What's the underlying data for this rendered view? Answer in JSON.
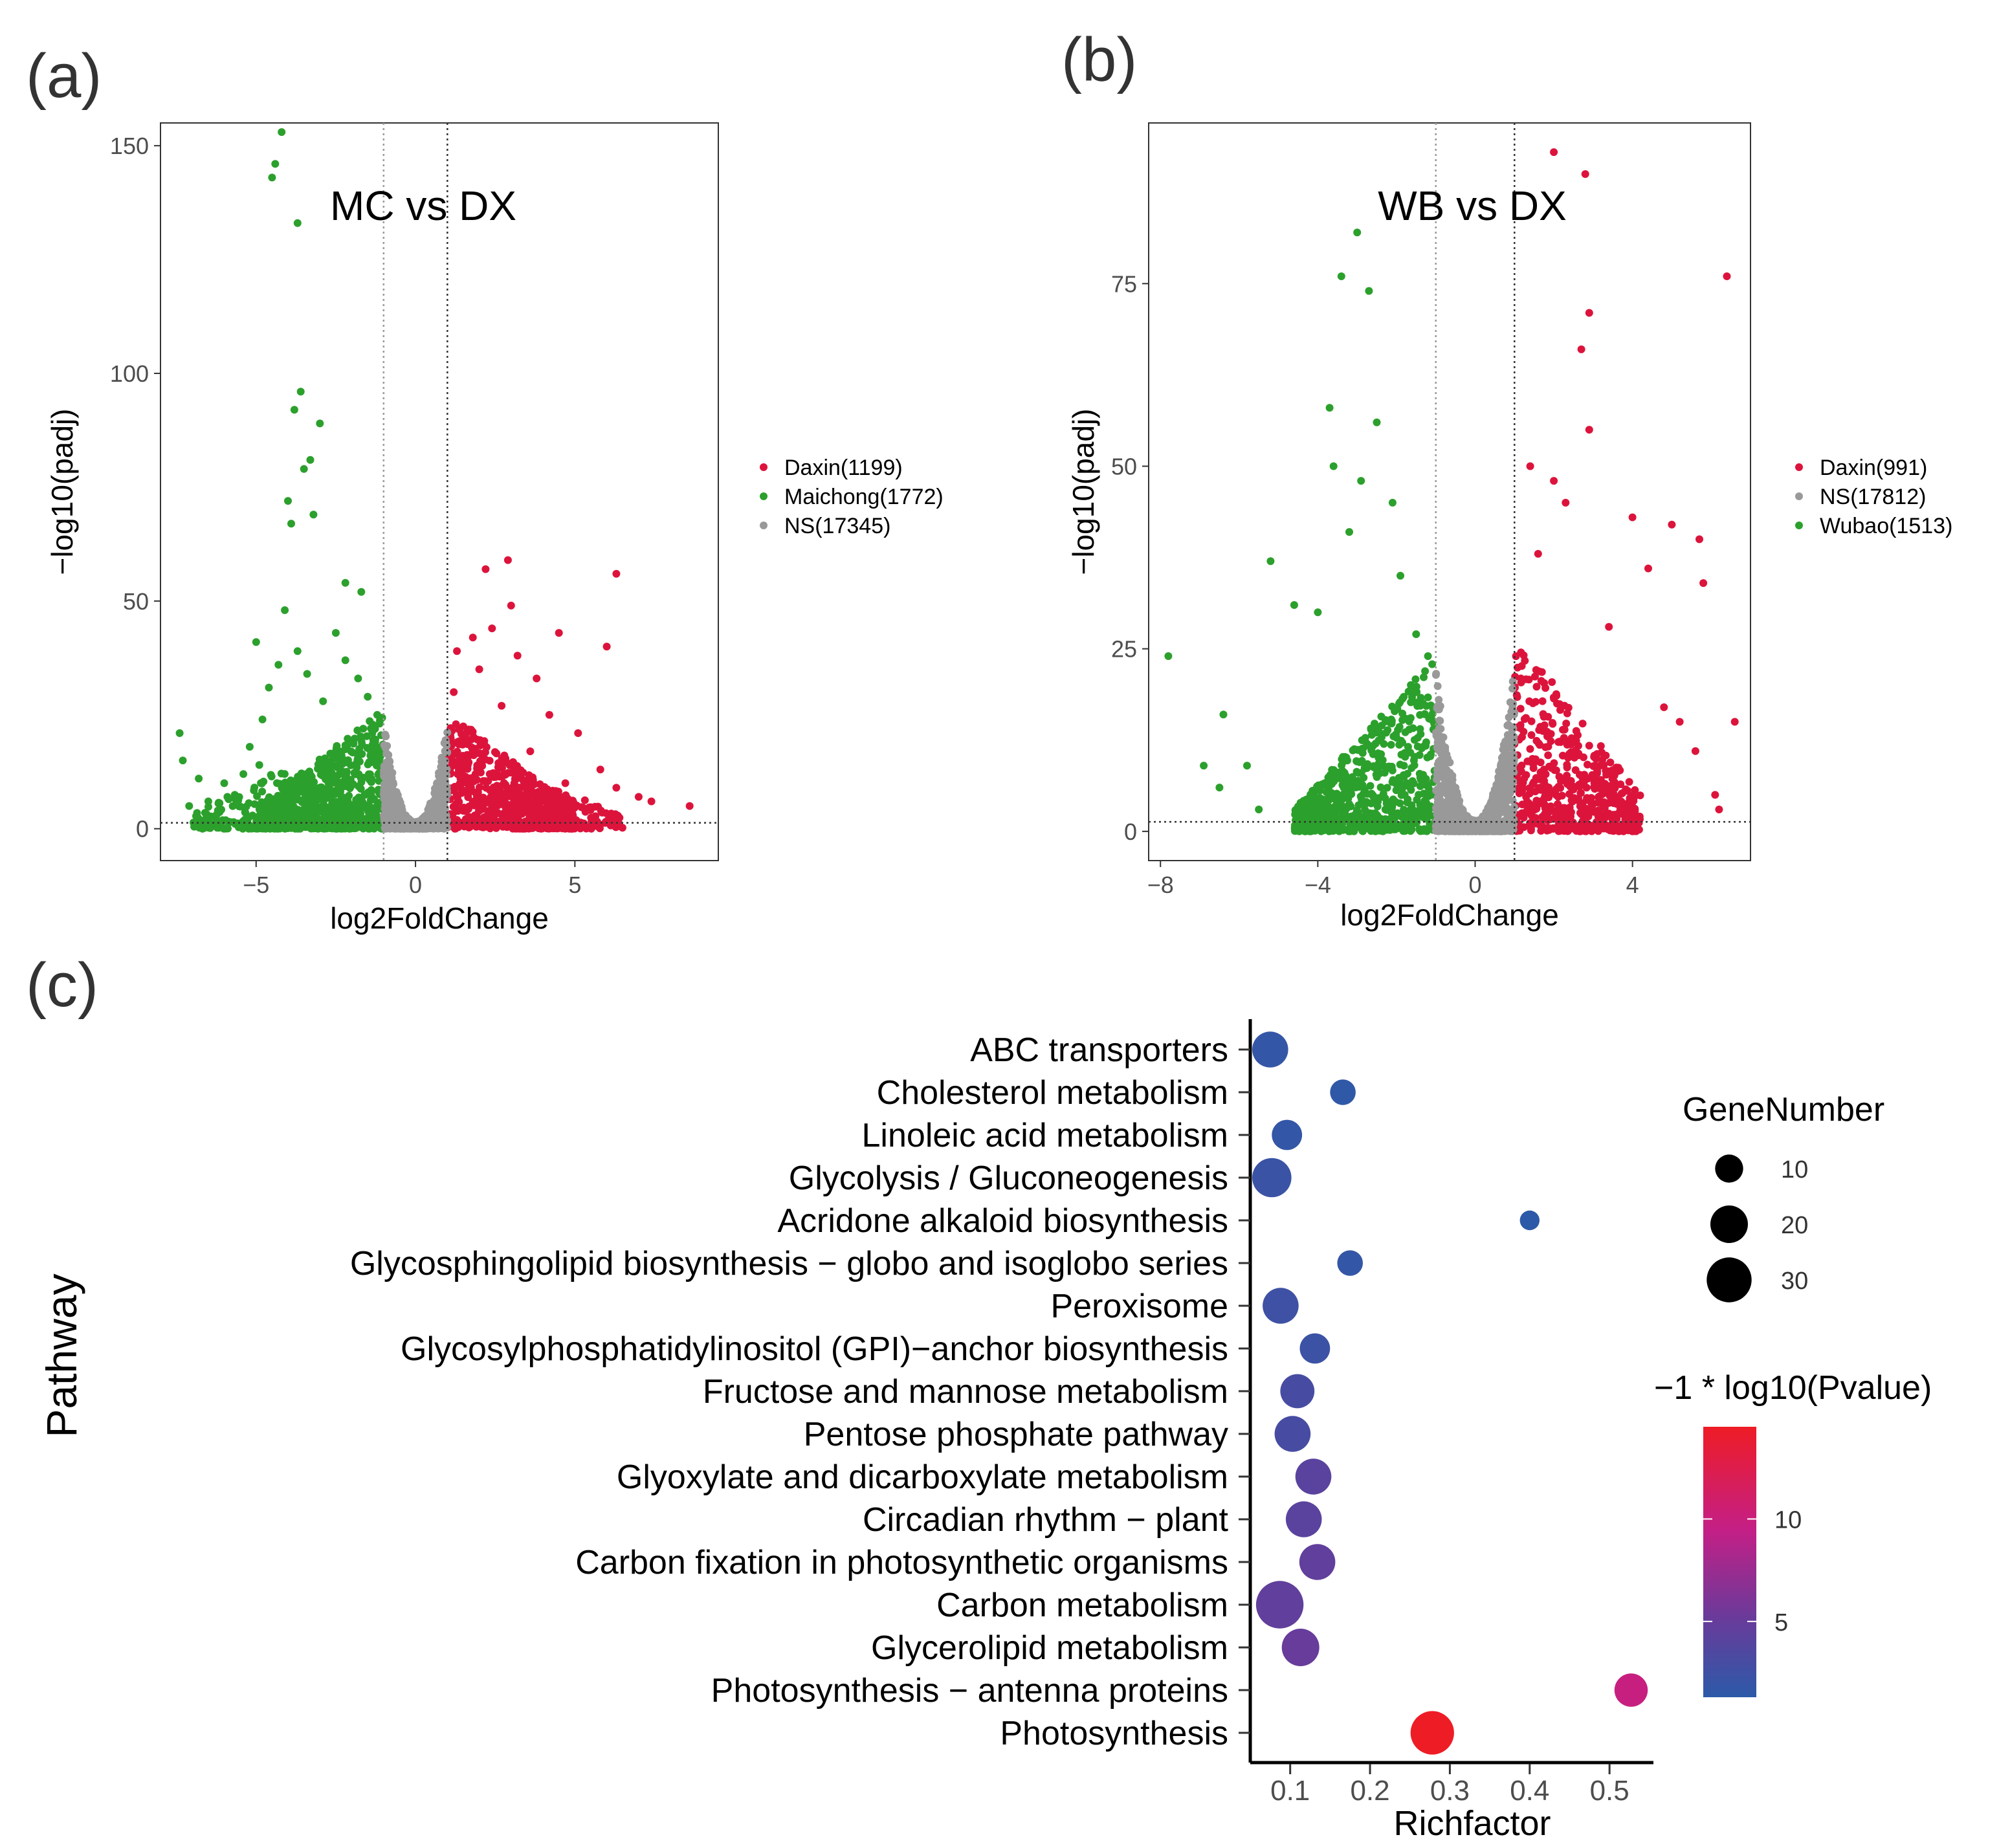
{
  "panel_labels": {
    "a": "(a)",
    "b": "(b)",
    "c": "(c)"
  },
  "colors": {
    "up": "#dc143c",
    "down": "#2ca02c",
    "ns": "#999999",
    "cscale_low": "#2c4e9f",
    "cscale_mid": "#c41f86",
    "cscale_high": "#e8202a"
  },
  "chart_data": [
    {
      "type": "scatter",
      "subtype": "volcano",
      "title": "MC vs DX",
      "xlabel": "log2FoldChange",
      "ylabel": "−log10(padj)",
      "xlim": [
        -8.0,
        9.5
      ],
      "ylim": [
        -7,
        155
      ],
      "xticks": [
        -5,
        0,
        5
      ],
      "xtick_labels": [
        "−5",
        "0",
        "5"
      ],
      "yticks": [
        0,
        50,
        100,
        150
      ],
      "ytick_labels": [
        "0",
        "50",
        "100",
        "150"
      ],
      "thresholds": {
        "vlines": [
          -1,
          1
        ],
        "hline": 1.3
      },
      "legend": {
        "position": "right",
        "entries": [
          {
            "label": "Daxin(1199)",
            "group": "up"
          },
          {
            "label": "Maichong(1772)",
            "group": "down"
          },
          {
            "label": "NS(17345)",
            "group": "ns"
          }
        ]
      },
      "points": {
        "down": [
          [
            -4.2,
            153
          ],
          [
            -4.4,
            146
          ],
          [
            -4.5,
            143
          ],
          [
            -3.7,
            133
          ],
          [
            -3.6,
            96
          ],
          [
            -3.8,
            92
          ],
          [
            -3.0,
            89
          ],
          [
            -3.3,
            81
          ],
          [
            -3.5,
            79
          ],
          [
            -4.0,
            72
          ],
          [
            -3.2,
            69
          ],
          [
            -3.9,
            67
          ],
          [
            -2.2,
            54
          ],
          [
            -1.7,
            52
          ],
          [
            -4.1,
            48
          ],
          [
            -2.5,
            43
          ],
          [
            -5.0,
            41
          ],
          [
            -3.7,
            39
          ],
          [
            -7.4,
            21
          ],
          [
            -7.3,
            15
          ],
          [
            -6.8,
            11
          ],
          [
            -6.5,
            6
          ],
          [
            -7.1,
            5
          ],
          [
            -5.9,
            7
          ],
          [
            -5.6,
            6
          ],
          [
            -5.2,
            18
          ],
          [
            -4.8,
            24
          ],
          [
            -4.6,
            31
          ],
          [
            -4.3,
            36
          ],
          [
            -3.4,
            34
          ],
          [
            -2.9,
            28
          ],
          [
            -2.2,
            37
          ],
          [
            -1.8,
            33
          ],
          [
            -1.5,
            29
          ],
          [
            -1.2,
            25
          ],
          [
            -1.4,
            22
          ],
          [
            -6.2,
            4
          ],
          [
            -6.0,
            10
          ],
          [
            -5.4,
            12
          ],
          [
            -4.9,
            14
          ]
        ],
        "up": [
          [
            2.9,
            59
          ],
          [
            2.2,
            57
          ],
          [
            6.3,
            56
          ],
          [
            3.0,
            49
          ],
          [
            6.0,
            40
          ],
          [
            4.5,
            43
          ],
          [
            2.4,
            44
          ],
          [
            3.2,
            38
          ],
          [
            1.8,
            42
          ],
          [
            1.3,
            39
          ],
          [
            1.2,
            30
          ],
          [
            3.8,
            33
          ],
          [
            4.2,
            25
          ],
          [
            5.1,
            21
          ],
          [
            5.8,
            13
          ],
          [
            6.3,
            9
          ],
          [
            7.0,
            7
          ],
          [
            7.4,
            6
          ],
          [
            8.6,
            5
          ],
          [
            4.7,
            10
          ],
          [
            3.6,
            17
          ],
          [
            2.7,
            27
          ],
          [
            1.6,
            21
          ],
          [
            2.0,
            35
          ]
        ],
        "ns": []
      },
      "clouds": [
        {
          "group": "down",
          "x_range": [
            -5.0,
            -1.0
          ],
          "y_max": [
            5,
            26
          ],
          "n": 780
        },
        {
          "group": "down",
          "x_range": [
            -7.0,
            -4.0
          ],
          "y_max": [
            3,
            14
          ],
          "n": 120
        },
        {
          "group": "up",
          "x_range": [
            1.0,
            5.0
          ],
          "y_max": [
            26,
            4
          ],
          "n": 650
        },
        {
          "group": "up",
          "x_range": [
            4.0,
            6.5
          ],
          "y_max": [
            10,
            3
          ],
          "n": 100
        },
        {
          "group": "ns",
          "x_range": [
            -1.0,
            1.0
          ],
          "y_max": [
            22,
            22
          ],
          "n": 900
        }
      ]
    },
    {
      "type": "scatter",
      "subtype": "volcano",
      "title": "WB vs DX",
      "xlabel": "log2FoldChange",
      "ylabel": "−log10(padj)",
      "xlim": [
        -8.3,
        7.0
      ],
      "ylim": [
        -4,
        97
      ],
      "xticks": [
        -8,
        -4,
        0,
        4
      ],
      "xtick_labels": [
        "−8",
        "−4",
        "0",
        "4"
      ],
      "yticks": [
        0,
        25,
        50,
        75
      ],
      "ytick_labels": [
        "0",
        "25",
        "50",
        "75"
      ],
      "thresholds": {
        "vlines": [
          -1,
          1
        ],
        "hline": 1.3
      },
      "legend": {
        "position": "right",
        "entries": [
          {
            "label": "Daxin(991)",
            "group": "up"
          },
          {
            "label": "NS(17812)",
            "group": "ns"
          },
          {
            "label": "Wubao(1513)",
            "group": "down"
          }
        ]
      },
      "points": {
        "down": [
          [
            -3.0,
            82
          ],
          [
            -3.4,
            76
          ],
          [
            -2.7,
            74
          ],
          [
            -3.7,
            58
          ],
          [
            -2.5,
            56
          ],
          [
            -3.6,
            50
          ],
          [
            -2.9,
            48
          ],
          [
            -5.2,
            37
          ],
          [
            -3.2,
            41
          ],
          [
            -2.1,
            45
          ],
          [
            -7.8,
            24
          ],
          [
            -6.4,
            16
          ],
          [
            -5.8,
            9
          ],
          [
            -6.9,
            9
          ],
          [
            -6.5,
            6
          ],
          [
            -5.5,
            3
          ],
          [
            -4.6,
            31
          ],
          [
            -4.0,
            30
          ],
          [
            -1.9,
            35
          ],
          [
            -1.5,
            27
          ],
          [
            -1.2,
            24
          ]
        ],
        "up": [
          [
            2.0,
            93
          ],
          [
            2.8,
            90
          ],
          [
            6.4,
            76
          ],
          [
            2.9,
            71
          ],
          [
            2.7,
            66
          ],
          [
            2.9,
            55
          ],
          [
            4.0,
            43
          ],
          [
            2.0,
            48
          ],
          [
            1.4,
            50
          ],
          [
            5.0,
            42
          ],
          [
            5.7,
            40
          ],
          [
            5.8,
            34
          ],
          [
            4.4,
            36
          ],
          [
            3.4,
            28
          ],
          [
            4.8,
            17
          ],
          [
            5.2,
            15
          ],
          [
            5.6,
            11
          ],
          [
            6.1,
            5
          ],
          [
            6.2,
            3
          ],
          [
            6.6,
            15
          ],
          [
            2.3,
            45
          ],
          [
            1.6,
            38
          ]
        ],
        "ns": []
      },
      "clouds": [
        {
          "group": "down",
          "x_range": [
            -4.6,
            -1.0
          ],
          "y_max": [
            3,
            24
          ],
          "n": 700
        },
        {
          "group": "up",
          "x_range": [
            1.0,
            4.2
          ],
          "y_max": [
            27,
            5
          ],
          "n": 560
        },
        {
          "group": "ns",
          "x_range": [
            -1.0,
            1.0
          ],
          "y_max": [
            21,
            21
          ],
          "n": 850
        }
      ]
    },
    {
      "type": "scatter",
      "subtype": "bubble",
      "xlabel": "Richfactor",
      "ylabel": "Pathway",
      "xlim": [
        0.05,
        0.555
      ],
      "xticks": [
        0.1,
        0.2,
        0.3,
        0.4,
        0.5
      ],
      "xtick_labels": [
        "0.1",
        "0.2",
        "0.3",
        "0.4",
        "0.5"
      ],
      "categories": [
        "ABC transporters",
        "Cholesterol metabolism",
        "Linoleic acid metabolism",
        "Glycolysis / Gluconeogenesis",
        "Acridone alkaloid biosynthesis",
        "Glycosphingolipid biosynthesis − globo and isoglobo series",
        "Peroxisome",
        "Glycosylphosphatidylinositol (GPI)−anchor biosynthesis",
        "Fructose and mannose metabolism",
        "Pentose phosphate pathway",
        "Glyoxylate and dicarboxylate metabolism",
        "Circadian rhythm − plant",
        "Carbon fixation in photosynthetic organisms",
        "Carbon metabolism",
        "Glycerolipid metabolism",
        "Photosynthesis − antenna proteins",
        "Photosynthesis"
      ],
      "richfactor": [
        0.075,
        0.166,
        0.096,
        0.077,
        0.4,
        0.175,
        0.088,
        0.131,
        0.109,
        0.103,
        0.129,
        0.117,
        0.134,
        0.087,
        0.113,
        0.527,
        0.278
      ],
      "gene_number": [
        18,
        8,
        12,
        22,
        4,
        8,
        18,
        12,
        16,
        18,
        18,
        18,
        18,
        34,
        20,
        15,
        28
      ],
      "neg_log10_pvalue": [
        1.8,
        1.5,
        1.8,
        2.2,
        1.3,
        1.8,
        2.4,
        2.3,
        3.0,
        3.0,
        4.2,
        4.2,
        4.6,
        4.6,
        5.0,
        9.8,
        14.5
      ],
      "size_legend": {
        "title": "GeneNumber",
        "values": [
          10,
          20,
          30
        ],
        "labels": [
          "10",
          "20",
          "30"
        ]
      },
      "color_legend": {
        "title": "−1 * log10(Pvalue)",
        "range": [
          1.3,
          14.5
        ],
        "ticks": [
          5,
          10
        ],
        "labels": [
          "5",
          "10"
        ]
      }
    }
  ]
}
